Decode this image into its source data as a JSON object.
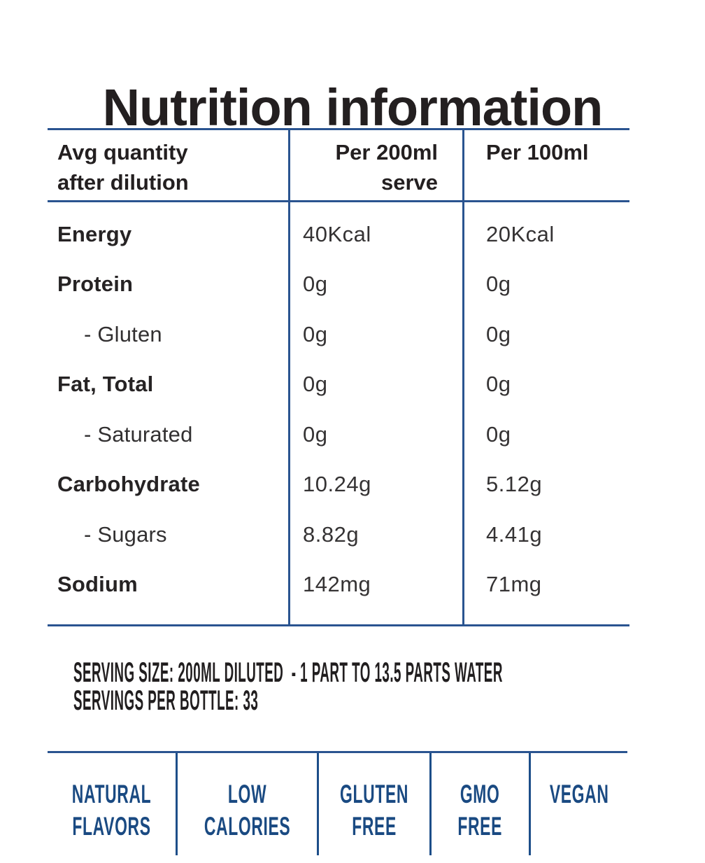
{
  "page": {
    "title": "Nutrition information"
  },
  "colors": {
    "rule_navy": "#2a5490",
    "badge_navy": "#1a4a82",
    "text_dark": "#231f20"
  },
  "table": {
    "header": {
      "col1_line1": "Avg quantity",
      "col1_line2": "after dilution",
      "col2_line1": "Per 200ml",
      "col2_line2": "serve",
      "col3": "Per 100ml"
    },
    "rows": [
      {
        "label": "Energy",
        "per200": "40Kcal",
        "per100": "20Kcal"
      },
      {
        "label": "Protein",
        "per200": "0g",
        "per100": "0g"
      },
      {
        "label": "- Gluten",
        "per200": "0g",
        "per100": "0g"
      },
      {
        "label": "Fat, Total",
        "per200": "0g",
        "per100": "0g"
      },
      {
        "label": "- Saturated",
        "per200": "0g",
        "per100": "0g"
      },
      {
        "label": "Carbohydrate",
        "per200": "10.24g",
        "per100": "5.12g"
      },
      {
        "label": "- Sugars",
        "per200": "8.82g",
        "per100": "4.41g"
      },
      {
        "label": "Sodium",
        "per200": "142mg",
        "per100": "71mg"
      }
    ]
  },
  "serving": {
    "line1": "SERVING SIZE: 200ML DILUTED  - 1 PART TO 13.5 PARTS WATER",
    "line2": "SERVINGS PER BOTTLE: 33"
  },
  "badges": [
    {
      "line1": "NATURAL",
      "line2": "FLAVORS"
    },
    {
      "line1": "LOW",
      "line2": "CALORIES"
    },
    {
      "line1": "GLUTEN",
      "line2": "FREE"
    },
    {
      "line1": "GMO",
      "line2": "FREE"
    },
    {
      "line1": "VEGAN",
      "line2": ""
    }
  ]
}
